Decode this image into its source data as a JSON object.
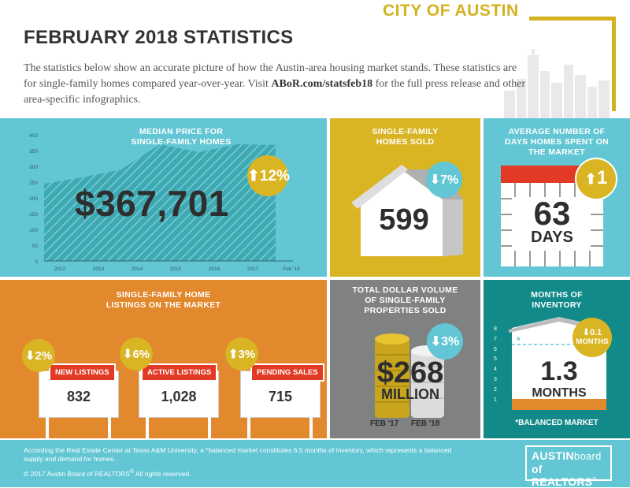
{
  "header": {
    "city": "CITY OF AUSTIN",
    "title": "FEBRUARY 2018 STATISTICS",
    "intro_before": "The statistics below show an accurate picture of how the Austin-area housing market stands. These statistics are for single-family homes compared year-over-year. Visit ",
    "intro_link": "ABoR.com/statsfeb18",
    "intro_after": " for the full press release and other area-specific infographics."
  },
  "median_price": {
    "title_line1": "MEDIAN PRICE FOR",
    "title_line2": "SINGLE-FAMILY HOMES",
    "value": "$367,701",
    "change": "12%",
    "direction": "up"
  },
  "homes_sold": {
    "title_line1": "SINGLE-FAMILY",
    "title_line2": "HOMES SOLD",
    "value": "599",
    "change": "7%",
    "direction": "down"
  },
  "days_on_market": {
    "title_line1": "AVERAGE NUMBER OF",
    "title_line2": "DAYS HOMES SPENT ON",
    "title_line3": "THE MARKET",
    "value": "63",
    "unit": "DAYS",
    "change": "1",
    "direction": "up"
  },
  "listings": {
    "title_line1": "SINGLE-FAMILY HOME",
    "title_line2": "LISTINGS ON THE MARKET",
    "items": [
      {
        "label": "NEW LISTINGS",
        "value": "832",
        "change": "2%",
        "direction": "down"
      },
      {
        "label": "ACTIVE LISTINGS",
        "value": "1,028",
        "change": "6%",
        "direction": "down"
      },
      {
        "label": "PENDING SALES",
        "value": "715",
        "change": "3%",
        "direction": "up"
      }
    ]
  },
  "dollar_volume": {
    "title_line1": "TOTAL DOLLAR VOLUME",
    "title_line2": "OF SINGLE-FAMILY",
    "title_line3": "PROPERTIES SOLD",
    "value": "$268",
    "unit": "MILLION",
    "change": "3%",
    "direction": "down",
    "label_left": "FEB '17",
    "label_right": "FEB '18"
  },
  "inventory": {
    "title_line1": "MONTHS OF",
    "title_line2": "INVENTORY",
    "value": "1.3",
    "unit": "MONTHS",
    "change": "0.1",
    "change_unit": "MONTHS",
    "direction": "down",
    "balanced_label": "*BALANCED MARKET",
    "balanced_marker": "*",
    "y_ticks": [
      "8",
      "7",
      "6",
      "5",
      "4",
      "3",
      "2",
      "1"
    ]
  },
  "chart_data": {
    "type": "area",
    "x": [
      "2012",
      "2013",
      "2014",
      "2015",
      "2016",
      "2017",
      "Feb '18"
    ],
    "y_ticks": [
      "400",
      "350",
      "300",
      "250",
      "200",
      "150",
      "100",
      "50",
      "0"
    ],
    "ylim": [
      0,
      400
    ],
    "points": [
      {
        "x": "2012",
        "y": 245
      },
      {
        "x": "2013",
        "y": 265
      },
      {
        "x": "2014",
        "y": 290
      },
      {
        "x": "2015",
        "y": 370
      },
      {
        "x": "2016",
        "y": 345
      },
      {
        "x": "2017",
        "y": 370
      },
      {
        "x": "Feb '18",
        "y": 368
      }
    ],
    "title": "MEDIAN PRICE FOR SINGLE-FAMILY HOMES",
    "xlabel": "",
    "ylabel": "",
    "grid": false
  },
  "footer": {
    "note": "According the Real Estate Center at Texas A&M University, a *balanced market constitutes 6.5 months of inventory, which represents a balanced supply and demand for homes.",
    "copyright": "© 2017  Austin Board of REALTORS",
    "copyright_suffix": "  All rights reserved.",
    "logo_line1": "AUSTIN",
    "logo_line1b": "board",
    "logo_line2": "of REALTORS"
  },
  "colors": {
    "teal": "#62c6d4",
    "gold": "#d9b524",
    "orange": "#e2882d",
    "gray": "#7f8280",
    "dark_teal": "#138a8a",
    "red": "#e23a25"
  }
}
